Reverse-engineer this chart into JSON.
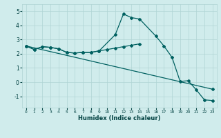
{
  "line1_x": [
    0,
    1,
    2,
    3,
    4,
    5,
    6,
    7,
    8,
    9,
    11,
    12,
    13,
    14,
    16,
    17,
    18,
    19,
    20,
    21,
    22,
    23
  ],
  "line1_y": [
    2.55,
    2.3,
    2.5,
    2.45,
    2.35,
    2.1,
    2.05,
    2.1,
    2.1,
    2.2,
    3.35,
    4.8,
    4.55,
    4.45,
    3.25,
    2.55,
    1.75,
    0.05,
    0.1,
    -0.55,
    -1.25,
    -1.3
  ],
  "line2_x": [
    0,
    23
  ],
  "line2_y": [
    2.55,
    -0.5
  ],
  "line3_x": [
    0,
    1,
    2,
    3,
    4,
    5,
    6,
    7,
    8,
    9,
    10,
    11,
    12,
    13,
    14
  ],
  "line3_y": [
    2.55,
    2.3,
    2.5,
    2.45,
    2.35,
    2.1,
    2.05,
    2.1,
    2.1,
    2.2,
    2.3,
    2.4,
    2.5,
    2.6,
    2.7
  ],
  "color": "#006060",
  "bg_color": "#d0ecec",
  "grid_color": "#b0d4d4",
  "xlabel": "Humidex (Indice chaleur)",
  "xlim": [
    -0.5,
    23.5
  ],
  "ylim": [
    -1.8,
    5.5
  ],
  "yticks": [
    -1,
    0,
    1,
    2,
    3,
    4,
    5
  ],
  "xticks": [
    0,
    1,
    2,
    3,
    4,
    5,
    6,
    7,
    8,
    9,
    10,
    11,
    12,
    13,
    14,
    15,
    16,
    17,
    18,
    19,
    20,
    21,
    22,
    23
  ]
}
